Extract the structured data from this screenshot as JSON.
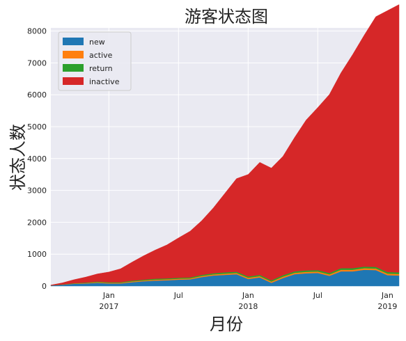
{
  "chart_data": {
    "type": "area",
    "title": "游客状态图",
    "xlabel": "月份",
    "ylabel": "状态人数",
    "x": [
      "2016-08",
      "2016-09",
      "2016-10",
      "2016-11",
      "2016-12",
      "2017-01",
      "2017-02",
      "2017-03",
      "2017-04",
      "2017-05",
      "2017-06",
      "2017-07",
      "2017-08",
      "2017-09",
      "2017-10",
      "2017-11",
      "2017-12",
      "2018-01",
      "2018-02",
      "2018-03",
      "2018-04",
      "2018-05",
      "2018-06",
      "2018-07",
      "2018-08",
      "2018-09",
      "2018-10",
      "2018-11",
      "2018-12",
      "2019-01",
      "2019-02"
    ],
    "series": [
      {
        "name": "new",
        "color": "#1f77b4",
        "values": [
          20,
          40,
          70,
          80,
          100,
          80,
          80,
          120,
          150,
          170,
          180,
          200,
          210,
          280,
          330,
          350,
          370,
          220,
          270,
          100,
          250,
          370,
          400,
          410,
          320,
          460,
          460,
          510,
          500,
          340,
          330
        ]
      },
      {
        "name": "active",
        "color": "#ff7f0e",
        "values": [
          0,
          5,
          10,
          15,
          20,
          20,
          20,
          25,
          25,
          30,
          30,
          30,
          30,
          35,
          35,
          40,
          40,
          40,
          40,
          40,
          45,
          45,
          45,
          45,
          45,
          50,
          50,
          50,
          50,
          50,
          50
        ]
      },
      {
        "name": "return",
        "color": "#2ca02c",
        "values": [
          0,
          5,
          10,
          15,
          20,
          20,
          20,
          25,
          25,
          30,
          30,
          30,
          30,
          35,
          35,
          40,
          40,
          40,
          40,
          40,
          45,
          45,
          45,
          45,
          45,
          50,
          50,
          50,
          50,
          50,
          50
        ]
      },
      {
        "name": "inactive",
        "color": "#d62728",
        "values": [
          10,
          50,
          110,
          170,
          240,
          320,
          420,
          580,
          750,
          900,
          1050,
          1250,
          1450,
          1700,
          2050,
          2480,
          2920,
          3200,
          3530,
          3520,
          3730,
          4200,
          4720,
          5100,
          5600,
          6130,
          6700,
          7260,
          7850,
          8200,
          8400
        ]
      }
    ],
    "ylim": [
      0,
      8100
    ],
    "yticks": [
      0,
      1000,
      2000,
      3000,
      4000,
      5000,
      6000,
      7000,
      8000
    ],
    "xticks": [
      {
        "x": "2017-01",
        "label": "Jan",
        "sublabel": "2017"
      },
      {
        "x": "2017-07",
        "label": "Jul",
        "sublabel": ""
      },
      {
        "x": "2018-01",
        "label": "Jan",
        "sublabel": "2018"
      },
      {
        "x": "2018-07",
        "label": "Jul",
        "sublabel": ""
      },
      {
        "x": "2019-01",
        "label": "Jan",
        "sublabel": "2019"
      }
    ],
    "grid": true,
    "legend_position": "top-left",
    "plot_background": "#eaeaf2"
  }
}
